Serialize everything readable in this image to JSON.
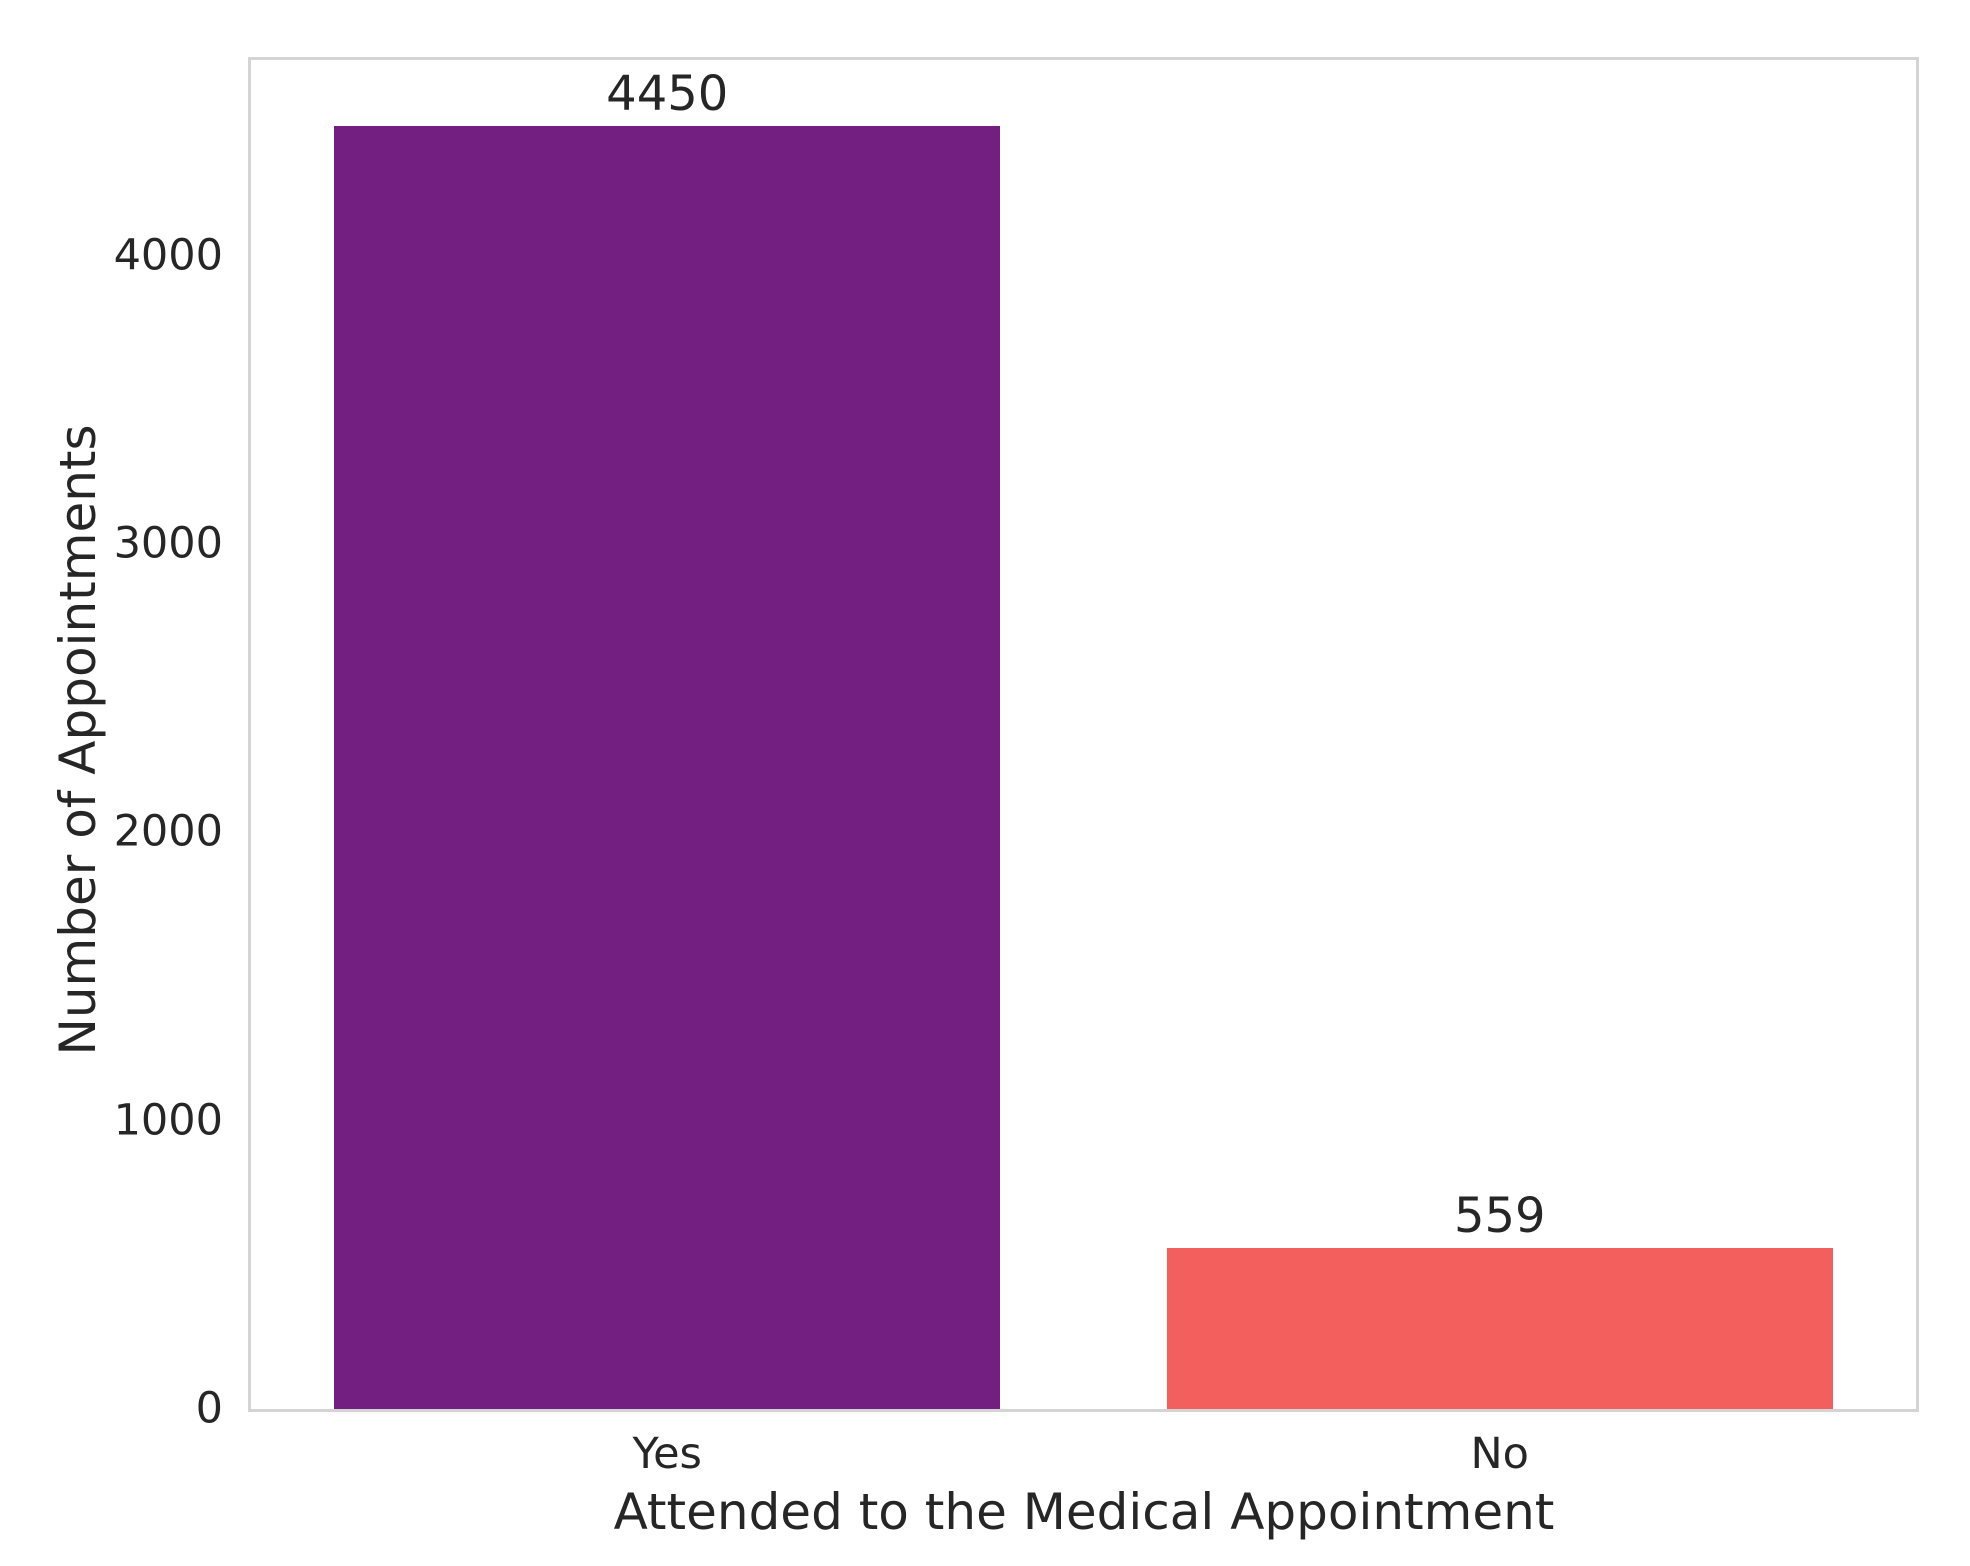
{
  "chart_data": {
    "type": "bar",
    "title": "",
    "categories": [
      "Yes",
      "No"
    ],
    "values": [
      4450,
      559
    ],
    "bar_value_labels": [
      "4450",
      "559"
    ],
    "bar_colors": [
      "#721F81",
      "#F25F5C"
    ],
    "xlabel": "Attended to the Medical Appointment",
    "ylabel": "Number of Appointments",
    "yticks": [
      0,
      1000,
      2000,
      3000,
      4000
    ],
    "ytick_labels": [
      "0",
      "1000",
      "2000",
      "3000",
      "4000"
    ],
    "ylim": [
      0,
      4678
    ],
    "grid": false,
    "legend_position": "none",
    "bar_width_fraction": 0.8
  },
  "colors": {
    "spine": "#d4d4d4",
    "text": "#262626",
    "background": "#ffffff"
  }
}
